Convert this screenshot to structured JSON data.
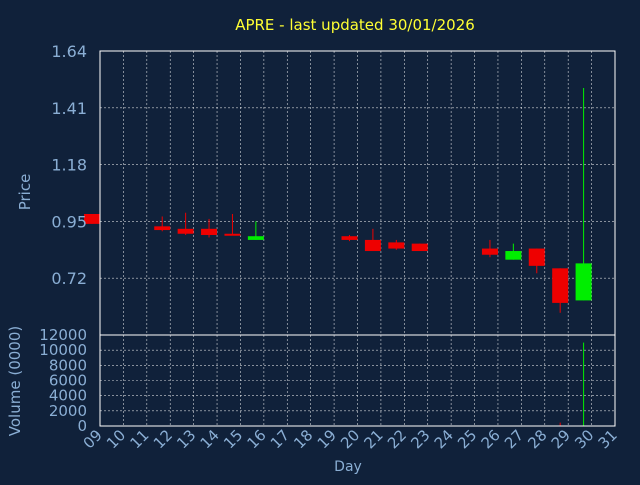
{
  "colors": {
    "background": "#10213a",
    "frame": "#ffffff",
    "grid": "#ffffff",
    "title": "#ffff33",
    "axis_text": "#8aaed4",
    "up": "#00ee00",
    "down": "#ee0000"
  },
  "chart_data": [
    {
      "type": "candlestick",
      "title": "APRE - last updated 30/01/2026",
      "ylabel": "Price",
      "xlabel": "",
      "ylim": [
        0.49,
        1.64
      ],
      "yticks": [
        "0.72",
        "0.95",
        "1.18",
        "1.41",
        "1.64"
      ],
      "grid": true,
      "x_range": [
        9,
        31
      ],
      "candles": [
        {
          "day": 9,
          "open": 0.98,
          "high": 0.98,
          "low": 0.94,
          "close": 0.94
        },
        {
          "day": 12,
          "open": 0.93,
          "high": 0.97,
          "low": 0.91,
          "close": 0.915
        },
        {
          "day": 13,
          "open": 0.92,
          "high": 0.985,
          "low": 0.895,
          "close": 0.9
        },
        {
          "day": 14,
          "open": 0.92,
          "high": 0.96,
          "low": 0.885,
          "close": 0.895
        },
        {
          "day": 15,
          "open": 0.9,
          "high": 0.98,
          "low": 0.895,
          "close": 0.898
        },
        {
          "day": 16,
          "open": 0.875,
          "high": 0.95,
          "low": 0.875,
          "close": 0.89
        },
        {
          "day": 20,
          "open": 0.89,
          "high": 0.895,
          "low": 0.87,
          "close": 0.875
        },
        {
          "day": 21,
          "open": 0.875,
          "high": 0.92,
          "low": 0.83,
          "close": 0.83
        },
        {
          "day": 22,
          "open": 0.865,
          "high": 0.875,
          "low": 0.835,
          "close": 0.84
        },
        {
          "day": 23,
          "open": 0.86,
          "high": 0.86,
          "low": 0.83,
          "close": 0.83
        },
        {
          "day": 26,
          "open": 0.84,
          "high": 0.875,
          "low": 0.805,
          "close": 0.815
        },
        {
          "day": 27,
          "open": 0.795,
          "high": 0.86,
          "low": 0.795,
          "close": 0.83
        },
        {
          "day": 28,
          "open": 0.84,
          "high": 0.84,
          "low": 0.74,
          "close": 0.77
        },
        {
          "day": 29,
          "open": 0.76,
          "high": 0.76,
          "low": 0.58,
          "close": 0.62
        },
        {
          "day": 30,
          "open": 0.63,
          "high": 1.49,
          "low": 0.63,
          "close": 0.78
        }
      ]
    },
    {
      "type": "bar",
      "title": "",
      "ylabel": "Volume (0000)",
      "xlabel": "Day",
      "ylim": [
        0,
        12000
      ],
      "yticks": [
        "0",
        "2000",
        "4000",
        "6000",
        "8000",
        "10000",
        "12000"
      ],
      "grid": true,
      "x": [
        "09",
        "10",
        "11",
        "12",
        "13",
        "14",
        "15",
        "16",
        "17",
        "18",
        "19",
        "20",
        "21",
        "22",
        "23",
        "24",
        "25",
        "26",
        "27",
        "28",
        "29",
        "30",
        "31"
      ],
      "bars": [
        {
          "day": 29,
          "value": 450,
          "direction": "down"
        },
        {
          "day": 30,
          "value": 11000,
          "direction": "up"
        }
      ]
    }
  ]
}
